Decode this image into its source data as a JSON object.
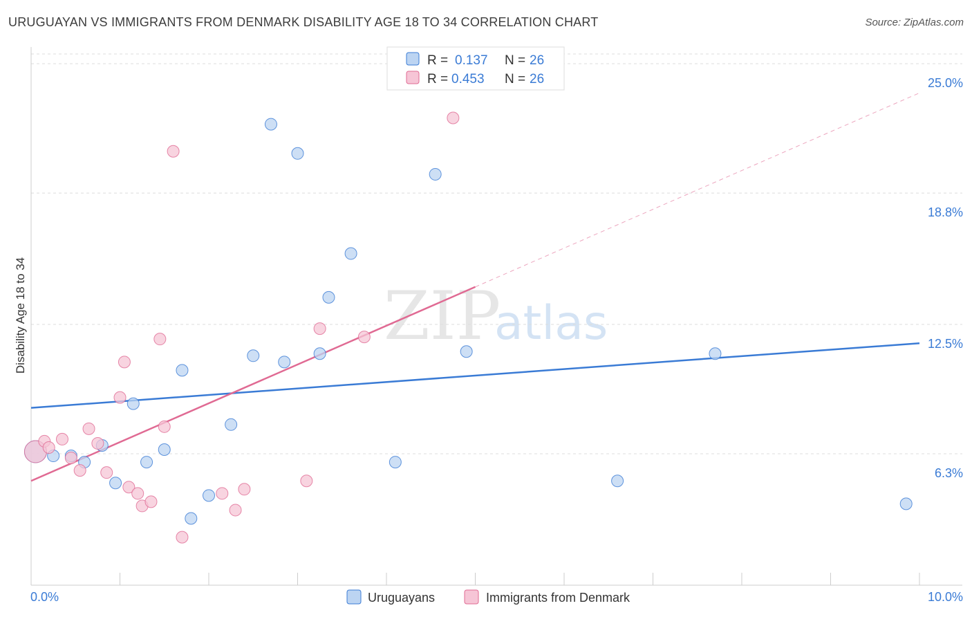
{
  "title": "URUGUAYAN VS IMMIGRANTS FROM DENMARK DISABILITY AGE 18 TO 34 CORRELATION CHART",
  "source": "Source: ZipAtlas.com",
  "colors": {
    "blue": "#3a7bd5",
    "blue_fill": "#bcd4f2",
    "pink": "#e06a93",
    "pink_fill": "#f6c5d6",
    "grid": "#dddddd"
  },
  "legend": {
    "rows": [
      {
        "r_label": "R =",
        "r_value": "0.137",
        "n_label": "N =",
        "n_value": "26"
      },
      {
        "r_label": "R =",
        "r_value": "0.453",
        "n_label": "N =",
        "n_value": "26"
      }
    ]
  },
  "bottom_legend": [
    "Uruguayans",
    "Immigrants from Denmark"
  ],
  "watermark": {
    "zip": "ZIP",
    "atlas": "atlas"
  },
  "chart_data": {
    "type": "scatter",
    "title": "URUGUAYAN VS IMMIGRANTS FROM DENMARK DISABILITY AGE 18 TO 34 CORRELATION CHART",
    "xlabel": "",
    "ylabel": "Disability Age 18 to 34",
    "xlim": [
      0,
      10
    ],
    "ylim": [
      0,
      25.8
    ],
    "x_tick_labels": [
      "0.0%",
      "10.0%"
    ],
    "y_ticks": [
      6.3,
      12.5,
      18.8,
      25.0
    ],
    "y_tick_labels": [
      "6.3%",
      "12.5%",
      "18.8%",
      "25.0%"
    ],
    "series": [
      {
        "name": "Uruguayans",
        "color": "#3a7bd5",
        "points": [
          [
            0.05,
            6.4
          ],
          [
            0.25,
            6.2
          ],
          [
            0.45,
            6.2
          ],
          [
            0.6,
            5.9
          ],
          [
            0.8,
            6.7
          ],
          [
            0.95,
            4.9
          ],
          [
            1.15,
            8.7
          ],
          [
            1.3,
            5.9
          ],
          [
            1.5,
            6.5
          ],
          [
            1.7,
            10.3
          ],
          [
            1.8,
            3.2
          ],
          [
            2.0,
            4.3
          ],
          [
            2.25,
            7.7
          ],
          [
            2.5,
            11.0
          ],
          [
            2.7,
            22.1
          ],
          [
            2.85,
            10.7
          ],
          [
            3.0,
            20.7
          ],
          [
            3.25,
            11.1
          ],
          [
            3.35,
            13.8
          ],
          [
            3.6,
            15.9
          ],
          [
            4.1,
            5.9
          ],
          [
            4.55,
            19.7
          ],
          [
            4.9,
            11.2
          ],
          [
            6.6,
            5.0
          ],
          [
            7.7,
            11.1
          ],
          [
            9.85,
            3.9
          ]
        ],
        "trend": {
          "x": [
            0,
            10
          ],
          "y": [
            8.5,
            11.6
          ]
        }
      },
      {
        "name": "Immigrants from Denmark",
        "color": "#e06a93",
        "points": [
          [
            0.05,
            6.4
          ],
          [
            0.15,
            6.9
          ],
          [
            0.2,
            6.6
          ],
          [
            0.35,
            7.0
          ],
          [
            0.45,
            6.1
          ],
          [
            0.55,
            5.5
          ],
          [
            0.65,
            7.5
          ],
          [
            0.75,
            6.8
          ],
          [
            0.85,
            5.4
          ],
          [
            1.0,
            9.0
          ],
          [
            1.05,
            10.7
          ],
          [
            1.1,
            4.7
          ],
          [
            1.2,
            4.4
          ],
          [
            1.25,
            3.8
          ],
          [
            1.35,
            4.0
          ],
          [
            1.45,
            11.8
          ],
          [
            1.5,
            7.6
          ],
          [
            1.6,
            20.8
          ],
          [
            1.7,
            2.3
          ],
          [
            2.15,
            4.4
          ],
          [
            2.3,
            3.6
          ],
          [
            2.4,
            4.6
          ],
          [
            3.1,
            5.0
          ],
          [
            3.25,
            12.3
          ],
          [
            3.75,
            11.9
          ],
          [
            4.75,
            22.4
          ]
        ],
        "trend": {
          "x": [
            0,
            5
          ],
          "y": [
            5.0,
            14.3
          ]
        },
        "trend_extension": {
          "x": [
            5,
            10
          ],
          "y": [
            14.3,
            23.6
          ]
        }
      }
    ]
  }
}
